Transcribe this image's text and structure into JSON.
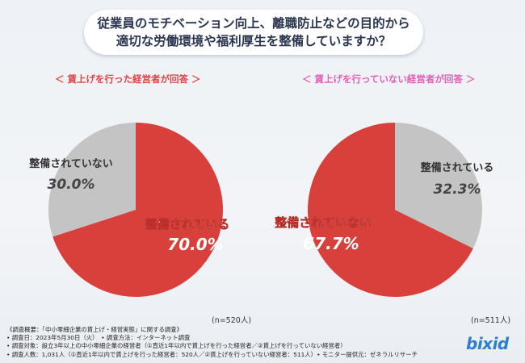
{
  "title": {
    "line1": "従業員のモチベーション向上、離職防止などの目的から",
    "line2": "適切な労働環境や福利厚生を整備していますか？"
  },
  "chart_data": [
    {
      "type": "pie",
      "title": "＜ 賃上げを行った経営者が回答 ＞",
      "sample": "(n=520人)",
      "categories": [
        "整備されている",
        "整備されていない"
      ],
      "values": [
        70.0,
        30.0
      ],
      "value_labels": [
        "70.0%",
        "30.0%"
      ],
      "colors": [
        "#d8403b",
        "#c4c4c4"
      ]
    },
    {
      "type": "pie",
      "title": "＜ 賃上げを行っていない経営者が回答 ＞",
      "sample": "(n=511人)",
      "categories": [
        "整備されていない",
        "整備されている"
      ],
      "values": [
        67.7,
        32.3
      ],
      "value_labels": [
        "67.7%",
        "32.3%"
      ],
      "colors": [
        "#d8403b",
        "#c4c4c4"
      ]
    }
  ],
  "footer": {
    "line1": "《調査概要：「中小零細企業の賃上げ・経営実態」に関する調査》",
    "line2": "• 調査日：2023年5月30日（火）　• 調査方法：インターネット調査",
    "line3": "• 調査対象：設立3年以上の中小零細企業の経営者（①直近1年以内で賃上げを行った経営者／②賃上げを行っていない経営者）",
    "line4": "• 調査人数：1,031人（①直近1年以内で賃上げを行った経営者：520人／②賃上げを行っていない経営者：511人）• モニター提供元：ゼネラルリサーチ"
  },
  "logo": {
    "text": "bixid"
  }
}
